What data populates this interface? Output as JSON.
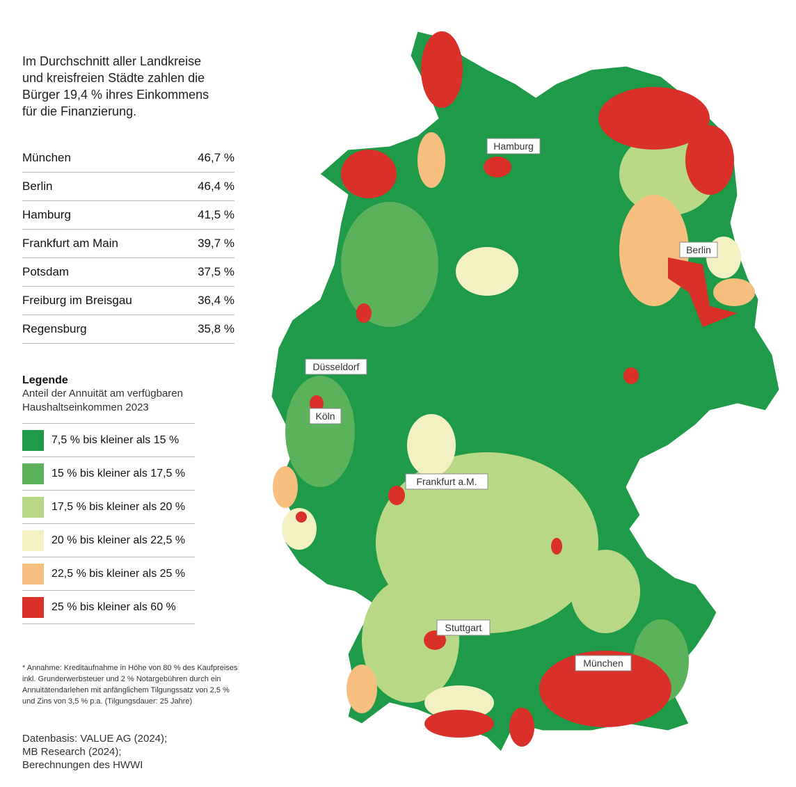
{
  "intro": [
    "Im Durchschnitt aller Landkreise",
    "und kreisfreien Städte zahlen die",
    "Bürger 19,4 % ihres Einkommens",
    "für die Finanzierung."
  ],
  "table": {
    "rows": [
      [
        "München",
        "46,7 %"
      ],
      [
        "Berlin",
        "46,4 %"
      ],
      [
        "Hamburg",
        "41,5 %"
      ],
      [
        "Frankfurt am Main",
        "39,7 %"
      ],
      [
        "Potsdam",
        "37,5 %"
      ],
      [
        "Freiburg im Breisgau",
        "36,4 %"
      ],
      [
        "Regensburg",
        "35,8 %"
      ]
    ]
  },
  "legend": {
    "title": "Legende",
    "subtitle": [
      "Anteil der Annuität am verfügbaren",
      "Haushaltseinkommen 2023"
    ],
    "items": [
      {
        "label": "7,5 % bis kleiner als 15 %",
        "color": "#1e9a48"
      },
      {
        "label": "15 % bis kleiner als 17,5 %",
        "color": "#5cb25a"
      },
      {
        "label": "17,5 % bis kleiner als 20 %",
        "color": "#b9d887"
      },
      {
        "label": "20 % bis kleiner als 22,5 %",
        "color": "#f3f0c2"
      },
      {
        "label": "22,5 % bis kleiner als 25 %",
        "color": "#f6bf7f"
      },
      {
        "label": "25 % bis kleiner als 60 %",
        "color": "#d9302a"
      }
    ]
  },
  "footnote": [
    "* Annahme: Kreditaufnahme in Höhe von 80 % des Kaufpreises",
    "inkl. Grunderwerbsteuer und 2 % Notargebühren durch ein",
    "Annuitätendarlehen mit anfänglichem Tilgungssatz von 2,5 %",
    "und Zins von 3,5 % p.a. (Tilgungsdauer: 25 Jahre)"
  ],
  "source": [
    "Datenbasis: VALUE AG (2024);",
    "MB Research (2024);",
    "Berechnungen des HWWI"
  ],
  "cities": [
    "Hamburg",
    "Berlin",
    "Düsseldorf",
    "Köln",
    "Frankfurt a.M.",
    "Stuttgart",
    "München"
  ]
}
